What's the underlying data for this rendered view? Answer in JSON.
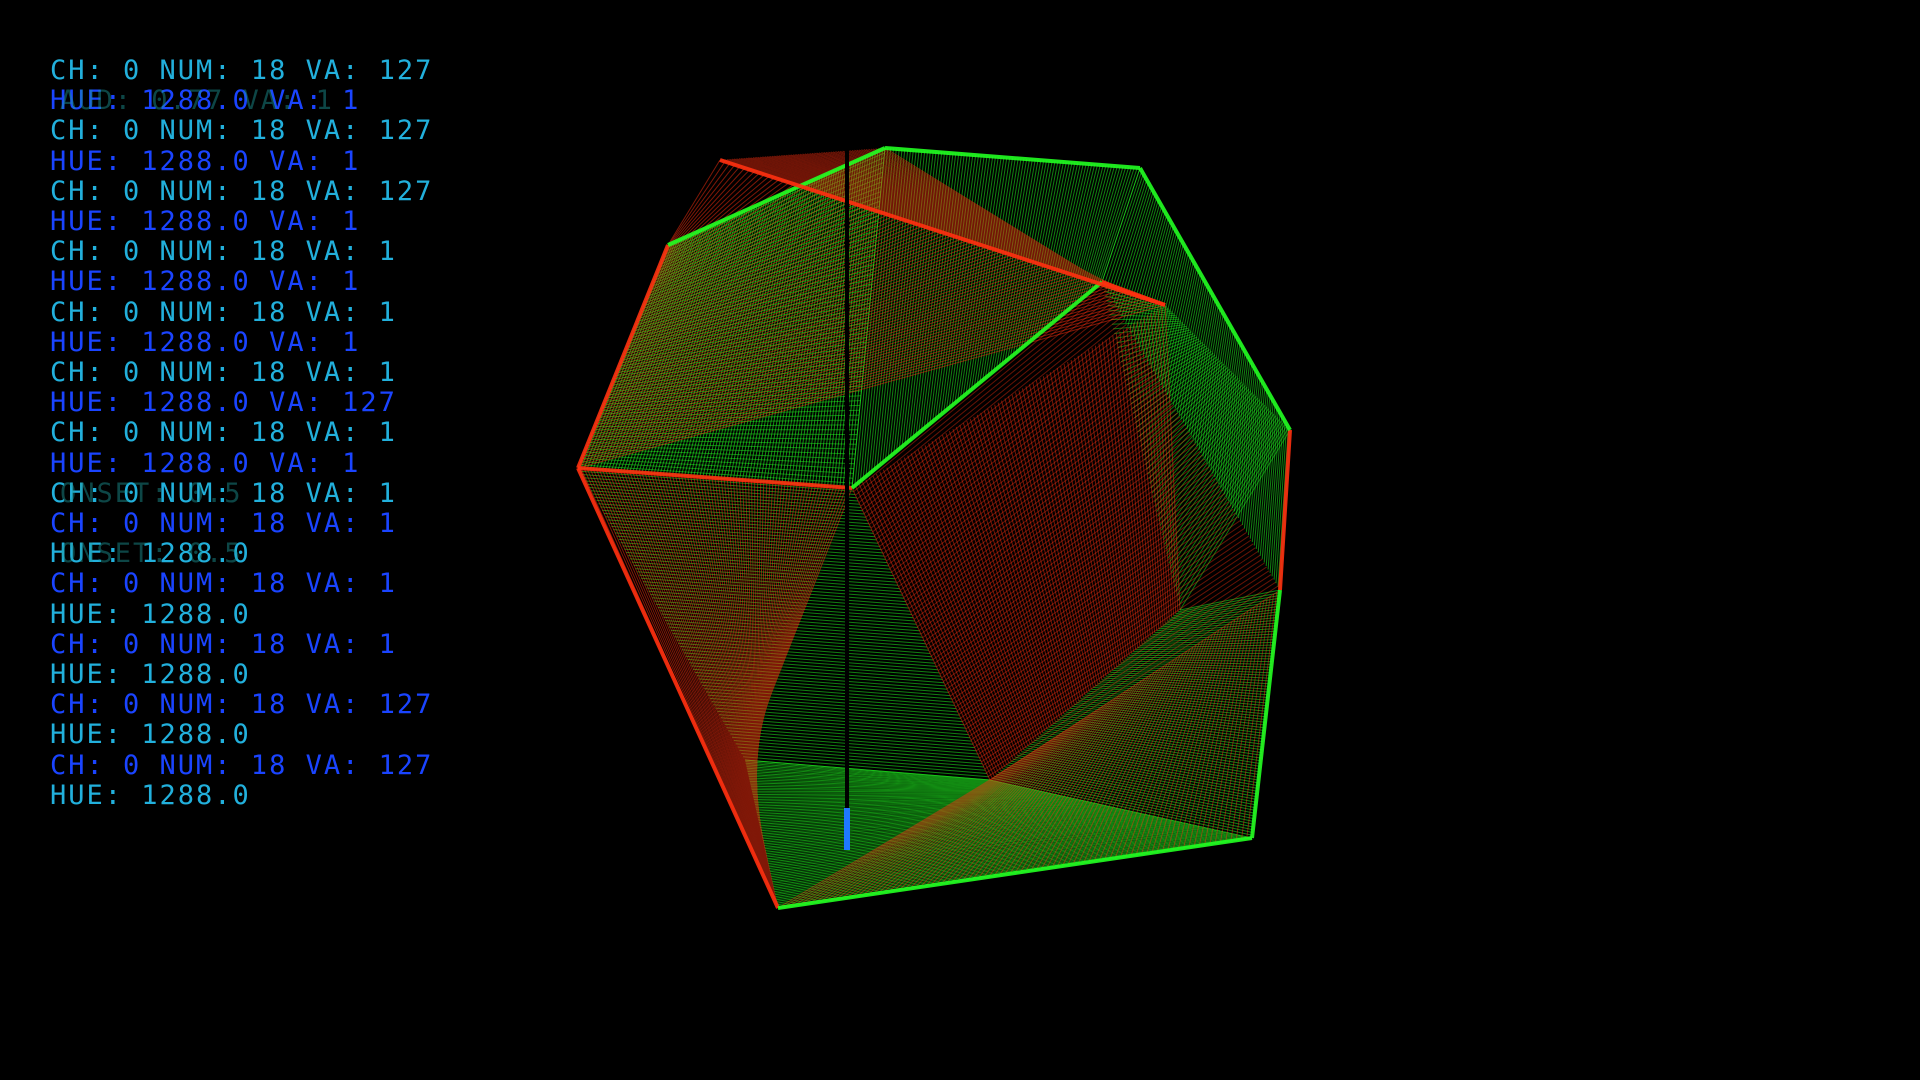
{
  "colors": {
    "background": "#000000",
    "text_cyan": "#22b0dc",
    "text_blue": "#1a44ff",
    "text_teal": "#1e9c9c",
    "line_green": "#22ff22",
    "line_red": "#ff3010",
    "axis": "#000000",
    "marker": "#1e78ff"
  },
  "midi_log": {
    "lines": [
      "CH: 0 NUM: 18 VA: 127",
      "HUE: 1288.0 VA: 1",
      "CH: 0 NUM: 18 VA: 127",
      "HUE: 1288.0 VA: 1",
      "CH: 0 NUM: 18 VA: 127",
      "HUE: 1288.0 VA: 1",
      "CH: 0 NUM: 18 VA: 1",
      "HUE: 1288.0 VA: 1",
      "CH: 0 NUM: 18 VA: 1",
      "HUE: 1288.0 VA: 1",
      "CH: 0 NUM: 18 VA: 1",
      "HUE: 1288.0 VA: 127",
      "CH: 0 NUM: 18 VA: 1",
      "HUE: 1288.0 VA: 1",
      "CH: 0 NUM: 18 VA: 1",
      "CH: 0 NUM: 18 VA: 1",
      "HUE: 1288.0",
      "CH: 0 NUM: 18 VA: 1",
      "HUE: 1288.0",
      "CH: 0 NUM: 18 VA: 1",
      "HUE: 1288.0",
      "CH: 0 NUM: 18 VA: 127",
      "HUE: 1288.0",
      "CH: 0 NUM: 18 VA: 127",
      "HUE: 1288.0"
    ],
    "ghost_lines": [
      "AUD: 0.77 VA: 1",
      "ONSET: 0.5",
      "ONSET: 0.5"
    ]
  }
}
